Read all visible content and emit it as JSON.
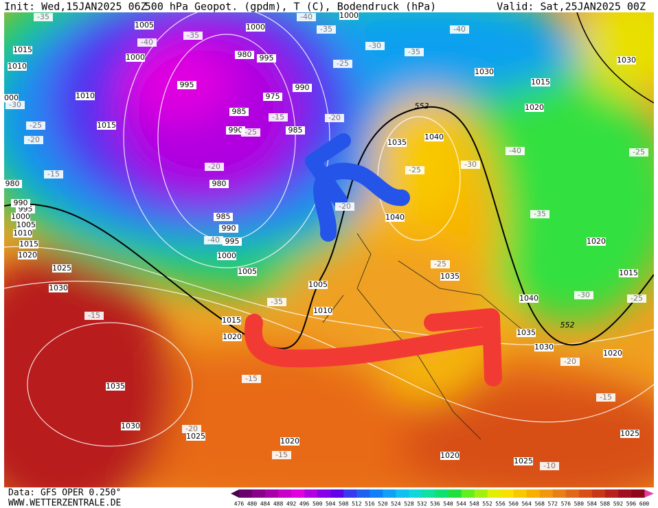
{
  "header": {
    "init": "Init: Wed,15JAN2025 06Z",
    "title": "500 hPa Geopot. (gpdm), T (C), Bodendruck (hPa)",
    "valid": "Valid: Sat,25JAN2025 00Z"
  },
  "footer": {
    "source": "Data: GFS OPER 0.250°",
    "site": "WWW.WETTERZENTRALE.DE"
  },
  "colorbar": {
    "ticks": [
      476,
      480,
      484,
      488,
      492,
      496,
      500,
      504,
      508,
      512,
      516,
      520,
      524,
      528,
      532,
      536,
      540,
      544,
      548,
      552,
      556,
      560,
      564,
      568,
      572,
      576,
      580,
      584,
      588,
      592,
      596,
      600
    ],
    "colors": [
      "#6a006a",
      "#8a008a",
      "#a800a8",
      "#c800c8",
      "#e000e0",
      "#b000e0",
      "#8800e8",
      "#6000e8",
      "#3838f0",
      "#2060f0",
      "#1080f8",
      "#10a0f8",
      "#10c0f0",
      "#10d8d8",
      "#10e0a0",
      "#10e070",
      "#20e040",
      "#60f020",
      "#a0f010",
      "#e0f000",
      "#f8e000",
      "#f8c800",
      "#f8b000",
      "#f09810",
      "#e88018",
      "#e06818",
      "#d85018",
      "#c83818",
      "#b82020",
      "#a01020",
      "#900818"
    ]
  },
  "isobars": [
    1005,
    1000,
    1000,
    1015,
    1010,
    1000,
    995,
    980,
    995,
    1010,
    1015,
    990,
    975,
    985,
    990,
    985,
    980,
    985,
    990,
    995,
    1000,
    1005,
    1040,
    1035,
    1040,
    1035,
    1030,
    1015,
    1020,
    1030,
    1020,
    1015,
    1040,
    1035,
    1030,
    1020,
    1025,
    1025,
    1020,
    1020,
    1030,
    1035,
    1025,
    1030,
    1025,
    1020,
    1015,
    1010,
    1005,
    1000,
    995,
    990,
    980,
    1015,
    1020,
    1010,
    1005,
    1000
  ],
  "isotherms": [
    -35,
    -40,
    -35,
    -35,
    -40,
    -40,
    -30,
    -35,
    -25,
    -15,
    -25,
    -20,
    -30,
    -25,
    -20,
    -15,
    -20,
    -40,
    -20,
    -25,
    -30,
    -40,
    -25,
    -35,
    -25,
    -35,
    -30,
    -25,
    -15,
    -15,
    -20,
    -15,
    -20,
    -15,
    -10
  ],
  "height_labels": [
    552,
    552
  ]
}
